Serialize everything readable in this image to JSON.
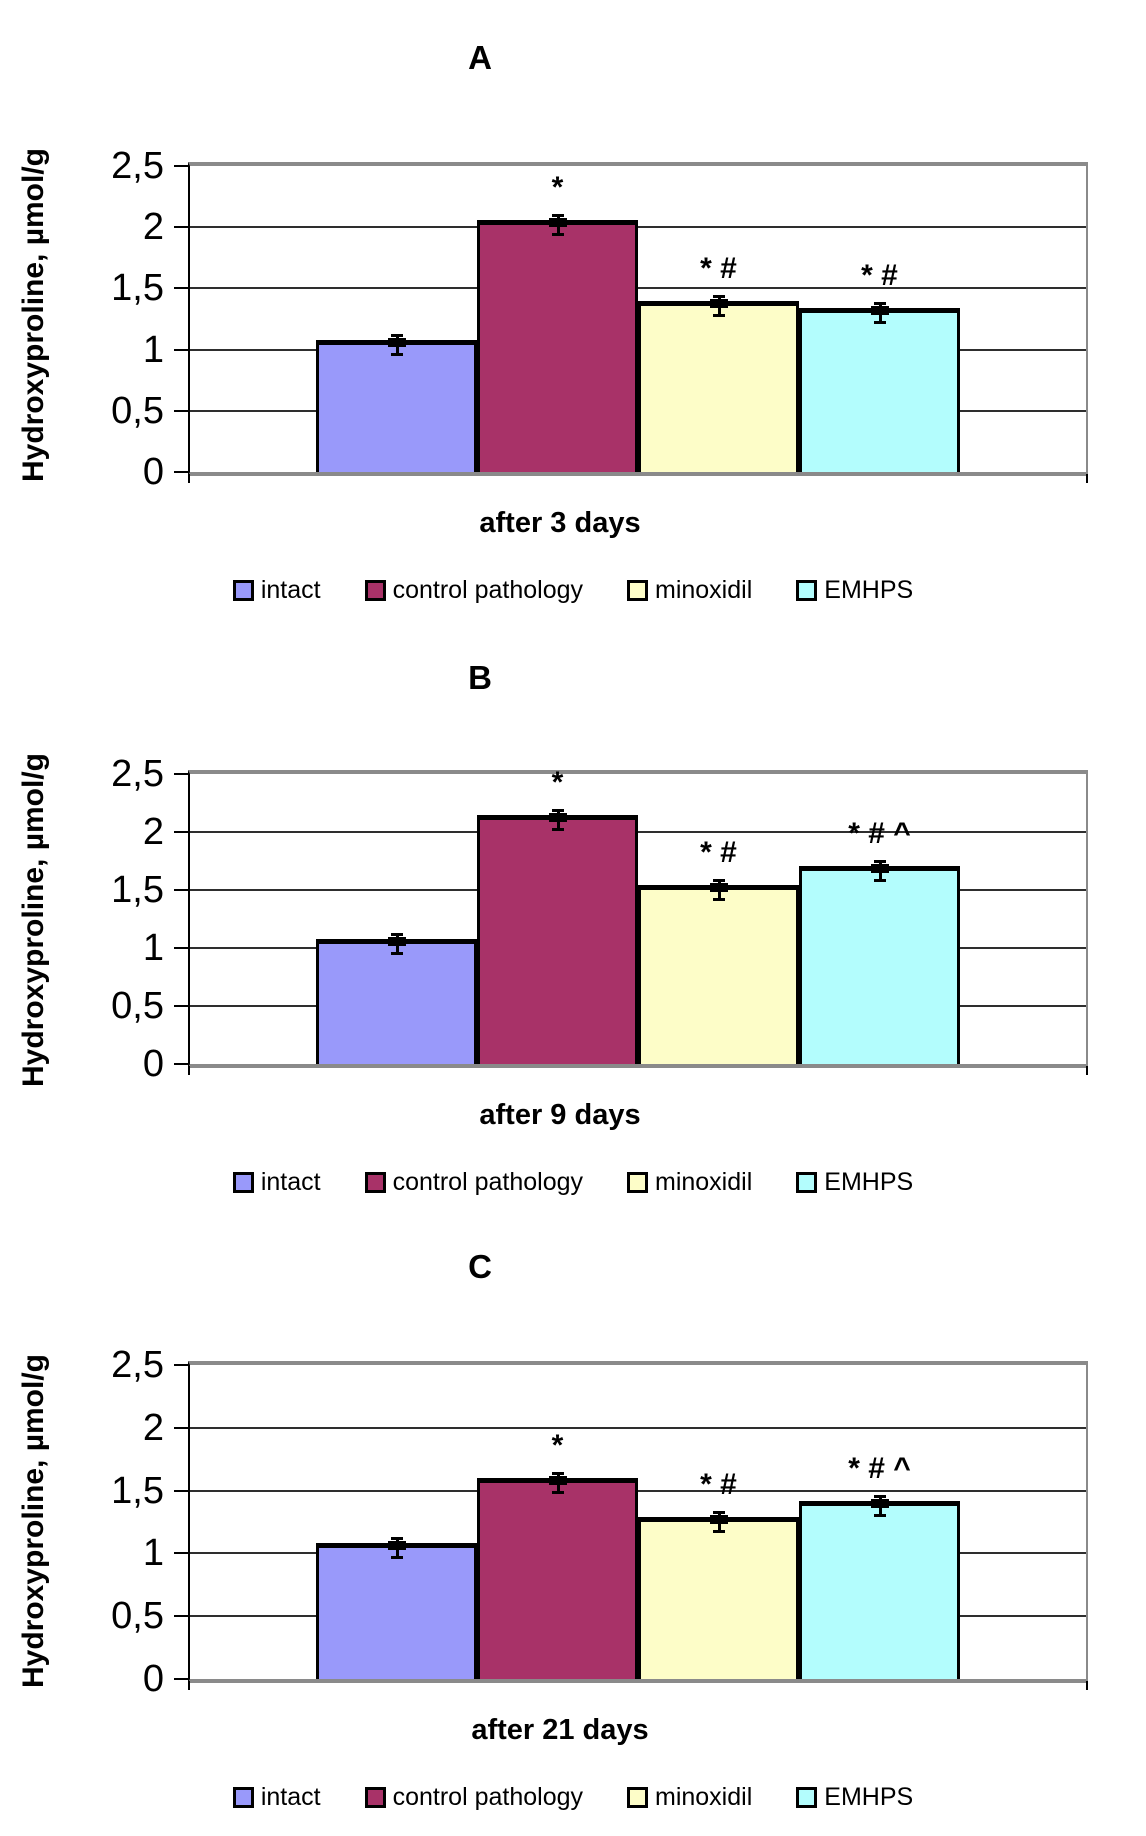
{
  "legend": [
    "intact",
    "control pathology",
    "minoxidil",
    "EMHPS"
  ],
  "colors": {
    "series": [
      "#9999fa",
      "#a83268",
      "#fdfdc8",
      "#b3fdfd"
    ],
    "bar_border": "#000000",
    "gridline": "#2e2e2e",
    "plot_frame": "#8a8a8a"
  },
  "chart_data": [
    {
      "type": "bar",
      "title": "A",
      "categories": [
        "intact",
        "control pathology",
        "minoxidil",
        "EMHPS"
      ],
      "values": [
        1.08,
        2.06,
        1.4,
        1.34
      ],
      "significance": [
        "",
        "*",
        "* #",
        "* #"
      ],
      "xlabel": "after 3 days",
      "ylabel": "Hydroxyproline, µmol/g",
      "ylim": [
        0,
        2.5
      ],
      "ytick_step": 0.5,
      "ytick_labels": [
        "0",
        "0,5",
        "1",
        "1,5",
        "2",
        "2,5"
      ],
      "grid": true,
      "error_bars_shown": true,
      "legend_position": "bottom"
    },
    {
      "type": "bar",
      "title": "B",
      "categories": [
        "intact",
        "control pathology",
        "minoxidil",
        "EMHPS"
      ],
      "values": [
        1.08,
        2.15,
        1.54,
        1.71
      ],
      "significance": [
        "",
        "*",
        "* #",
        "* # ^"
      ],
      "xlabel": "after 9 days",
      "ylabel": "Hydroxyproline, µmol/g",
      "ylim": [
        0,
        2.5
      ],
      "ytick_step": 0.5,
      "ytick_labels": [
        "0",
        "0,5",
        "1",
        "1,5",
        "2",
        "2,5"
      ],
      "grid": true,
      "error_bars_shown": true,
      "legend_position": "bottom"
    },
    {
      "type": "bar",
      "title": "C",
      "categories": [
        "intact",
        "control pathology",
        "minoxidil",
        "EMHPS"
      ],
      "values": [
        1.08,
        1.6,
        1.29,
        1.42
      ],
      "significance": [
        "",
        "*",
        "* #",
        "* # ^"
      ],
      "xlabel": "after 21 days",
      "ylabel": "Hydroxyproline, µmol/g",
      "ylim": [
        0,
        2.5
      ],
      "ytick_step": 0.5,
      "ytick_labels": [
        "0",
        "0,5",
        "1",
        "1,5",
        "2",
        "2,5"
      ],
      "grid": true,
      "error_bars_shown": true,
      "legend_position": "bottom"
    }
  ]
}
